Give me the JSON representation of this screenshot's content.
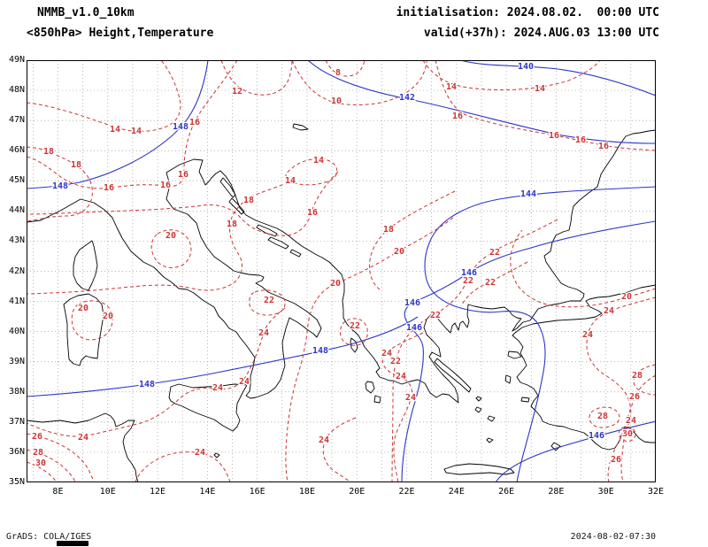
{
  "header": {
    "model": "NMMB_v1.0_10km",
    "product": "<850hPa> Height,Temperature",
    "init_line": "initialisation: 2024.08.02.  00:00 UTC",
    "valid_line": "valid(+37h): 2024.AUG.03 13:00 UTC"
  },
  "chart_data": {
    "type": "line",
    "variant": "contour_map",
    "title": "NMMB_v1.0_10km",
    "subtitle": "<850hPa> Height,Temperature",
    "x_axis": {
      "ticks": [
        "8E",
        "10E",
        "12E",
        "14E",
        "16E",
        "18E",
        "20E",
        "22E",
        "24E",
        "26E",
        "28E",
        "30E",
        "32E"
      ],
      "lon_min": 6.74,
      "lon_max": 32
    },
    "y_axis": {
      "ticks": [
        "49N",
        "48N",
        "47N",
        "46N",
        "45N",
        "44N",
        "43N",
        "42N",
        "41N",
        "40N",
        "39N",
        "38N",
        "37N",
        "36N",
        "35N"
      ],
      "lat_min": 35,
      "lat_max": 49
    },
    "grid": "dotted",
    "coastline_color": "#000000",
    "series": [
      {
        "name": "geopotential_height_850hPa",
        "unit": "dam",
        "style": "solid",
        "color": "#2c35c8",
        "levels": [
          140,
          142,
          144,
          146,
          148
        ],
        "labels": [
          {
            "v": "140",
            "x": 564,
            "y": 7
          },
          {
            "v": "142",
            "x": 430,
            "y": 42
          },
          {
            "v": "148",
            "x": 174,
            "y": 75
          },
          {
            "v": "148",
            "x": 38,
            "y": 142
          },
          {
            "v": "144",
            "x": 567,
            "y": 151
          },
          {
            "v": "146",
            "x": 500,
            "y": 240
          },
          {
            "v": "146",
            "x": 436,
            "y": 274
          },
          {
            "v": "146",
            "x": 438,
            "y": 302
          },
          {
            "v": "148",
            "x": 332,
            "y": 328
          },
          {
            "v": "148",
            "x": 136,
            "y": 366
          },
          {
            "v": "146",
            "x": 644,
            "y": 424
          }
        ]
      },
      {
        "name": "temperature_850hPa",
        "unit": "degC",
        "style": "dashed",
        "color": "#cd3333",
        "levels": [
          8,
          10,
          12,
          14,
          16,
          18,
          20,
          22,
          24,
          26,
          28,
          30
        ],
        "labels": [
          {
            "v": "8",
            "x": 352,
            "y": 14
          },
          {
            "v": "10",
            "x": 350,
            "y": 46
          },
          {
            "v": "12",
            "x": 238,
            "y": 35
          },
          {
            "v": "14",
            "x": 480,
            "y": 30
          },
          {
            "v": "14",
            "x": 580,
            "y": 32
          },
          {
            "v": "14",
            "x": 100,
            "y": 78
          },
          {
            "v": "14",
            "x": 124,
            "y": 80
          },
          {
            "v": "14",
            "x": 330,
            "y": 113
          },
          {
            "v": "14",
            "x": 298,
            "y": 136
          },
          {
            "v": "16",
            "x": 487,
            "y": 63
          },
          {
            "v": "16",
            "x": 596,
            "y": 85
          },
          {
            "v": "16",
            "x": 626,
            "y": 90
          },
          {
            "v": "16",
            "x": 652,
            "y": 97
          },
          {
            "v": "16",
            "x": 190,
            "y": 70
          },
          {
            "v": "16",
            "x": 177,
            "y": 129
          },
          {
            "v": "16",
            "x": 157,
            "y": 141
          },
          {
            "v": "16",
            "x": 93,
            "y": 144
          },
          {
            "v": "16",
            "x": 323,
            "y": 172
          },
          {
            "v": "18",
            "x": 25,
            "y": 103
          },
          {
            "v": "18",
            "x": 56,
            "y": 118
          },
          {
            "v": "18",
            "x": 251,
            "y": 158
          },
          {
            "v": "18",
            "x": 232,
            "y": 185
          },
          {
            "v": "18",
            "x": 409,
            "y": 191
          },
          {
            "v": "20",
            "x": 163,
            "y": 198
          },
          {
            "v": "20",
            "x": 421,
            "y": 216
          },
          {
            "v": "20",
            "x": 349,
            "y": 252
          },
          {
            "v": "20",
            "x": 64,
            "y": 280
          },
          {
            "v": "20",
            "x": 92,
            "y": 289
          },
          {
            "v": "20",
            "x": 678,
            "y": 267
          },
          {
            "v": "22",
            "x": 529,
            "y": 217
          },
          {
            "v": "22",
            "x": 499,
            "y": 249
          },
          {
            "v": "22",
            "x": 524,
            "y": 251
          },
          {
            "v": "22",
            "x": 462,
            "y": 288
          },
          {
            "v": "22",
            "x": 274,
            "y": 271
          },
          {
            "v": "22",
            "x": 371,
            "y": 300
          },
          {
            "v": "22",
            "x": 417,
            "y": 340
          },
          {
            "v": "24",
            "x": 658,
            "y": 283
          },
          {
            "v": "24",
            "x": 634,
            "y": 310
          },
          {
            "v": "24",
            "x": 683,
            "y": 407
          },
          {
            "v": "24",
            "x": 268,
            "y": 308
          },
          {
            "v": "24",
            "x": 407,
            "y": 331
          },
          {
            "v": "24",
            "x": 423,
            "y": 357
          },
          {
            "v": "24",
            "x": 434,
            "y": 381
          },
          {
            "v": "24",
            "x": 216,
            "y": 370
          },
          {
            "v": "24",
            "x": 246,
            "y": 363
          },
          {
            "v": "24",
            "x": 64,
            "y": 426
          },
          {
            "v": "24",
            "x": 196,
            "y": 443
          },
          {
            "v": "24",
            "x": 336,
            "y": 429
          },
          {
            "v": "26",
            "x": 12,
            "y": 425
          },
          {
            "v": "26",
            "x": 687,
            "y": 380
          },
          {
            "v": "26",
            "x": 666,
            "y": 451
          },
          {
            "v": "28",
            "x": 13,
            "y": 443
          },
          {
            "v": "28",
            "x": 690,
            "y": 356
          },
          {
            "v": "28",
            "x": 651,
            "y": 402
          },
          {
            "v": "30",
            "x": 16,
            "y": 455
          },
          {
            "v": "30",
            "x": 679,
            "y": 422
          }
        ]
      }
    ]
  },
  "footer": {
    "credit": "GrADS: COLA/IGES",
    "generated": "2024-08-02-07:30"
  }
}
